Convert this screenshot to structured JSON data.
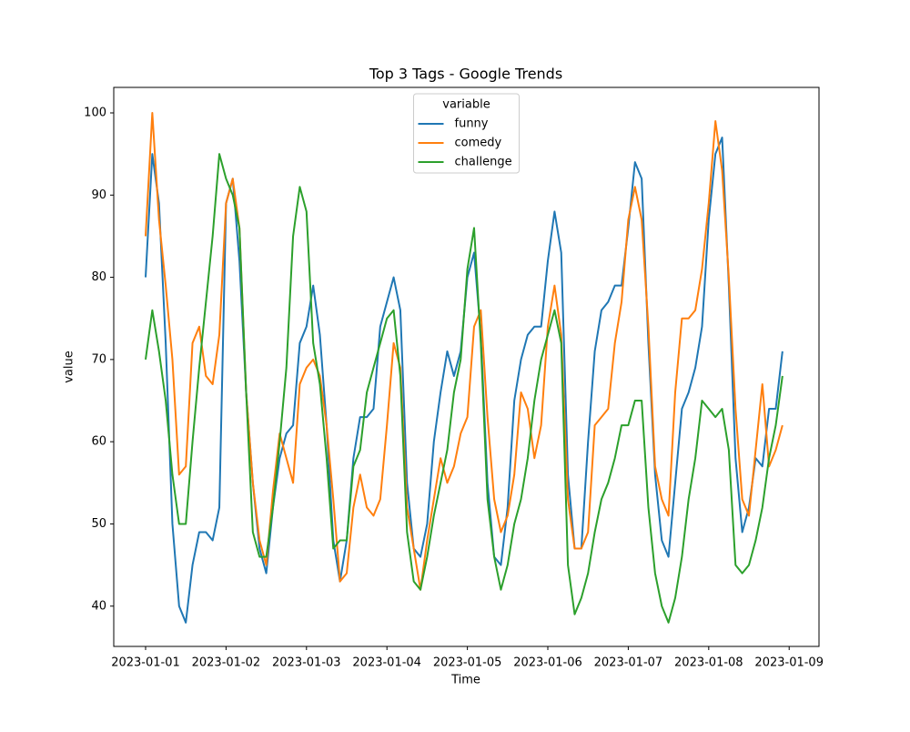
{
  "chart_data": {
    "type": "line",
    "title": "Top 3 Tags - Google Trends",
    "x_label": "Time",
    "y_label": "value",
    "legend_title": "variable",
    "legend_position": "upper center",
    "x": [
      "2023-01-01 00:00",
      "2023-01-01 02:00",
      "2023-01-01 04:00",
      "2023-01-01 06:00",
      "2023-01-01 08:00",
      "2023-01-01 10:00",
      "2023-01-01 12:00",
      "2023-01-01 14:00",
      "2023-01-01 16:00",
      "2023-01-01 18:00",
      "2023-01-01 20:00",
      "2023-01-01 22:00",
      "2023-01-02 00:00",
      "2023-01-02 02:00",
      "2023-01-02 04:00",
      "2023-01-02 06:00",
      "2023-01-02 08:00",
      "2023-01-02 10:00",
      "2023-01-02 12:00",
      "2023-01-02 14:00",
      "2023-01-02 16:00",
      "2023-01-02 18:00",
      "2023-01-02 20:00",
      "2023-01-02 22:00",
      "2023-01-03 00:00",
      "2023-01-03 02:00",
      "2023-01-03 04:00",
      "2023-01-03 06:00",
      "2023-01-03 08:00",
      "2023-01-03 10:00",
      "2023-01-03 12:00",
      "2023-01-03 14:00",
      "2023-01-03 16:00",
      "2023-01-03 18:00",
      "2023-01-03 20:00",
      "2023-01-03 22:00",
      "2023-01-04 00:00",
      "2023-01-04 02:00",
      "2023-01-04 04:00",
      "2023-01-04 06:00",
      "2023-01-04 08:00",
      "2023-01-04 10:00",
      "2023-01-04 12:00",
      "2023-01-04 14:00",
      "2023-01-04 16:00",
      "2023-01-04 18:00",
      "2023-01-04 20:00",
      "2023-01-04 22:00",
      "2023-01-05 00:00",
      "2023-01-05 02:00",
      "2023-01-05 04:00",
      "2023-01-05 06:00",
      "2023-01-05 08:00",
      "2023-01-05 10:00",
      "2023-01-05 12:00",
      "2023-01-05 14:00",
      "2023-01-05 16:00",
      "2023-01-05 18:00",
      "2023-01-05 20:00",
      "2023-01-05 22:00",
      "2023-01-06 00:00",
      "2023-01-06 02:00",
      "2023-01-06 04:00",
      "2023-01-06 06:00",
      "2023-01-06 08:00",
      "2023-01-06 10:00",
      "2023-01-06 12:00",
      "2023-01-06 14:00",
      "2023-01-06 16:00",
      "2023-01-06 18:00",
      "2023-01-06 20:00",
      "2023-01-06 22:00",
      "2023-01-07 00:00",
      "2023-01-07 02:00",
      "2023-01-07 04:00",
      "2023-01-07 06:00",
      "2023-01-07 08:00",
      "2023-01-07 10:00",
      "2023-01-07 12:00",
      "2023-01-07 14:00",
      "2023-01-07 16:00",
      "2023-01-07 18:00",
      "2023-01-07 20:00",
      "2023-01-07 22:00",
      "2023-01-08 00:00",
      "2023-01-08 02:00",
      "2023-01-08 04:00",
      "2023-01-08 06:00",
      "2023-01-08 08:00",
      "2023-01-08 10:00",
      "2023-01-08 12:00",
      "2023-01-08 14:00",
      "2023-01-08 16:00",
      "2023-01-08 18:00",
      "2023-01-08 20:00",
      "2023-01-08 22:00"
    ],
    "series": [
      {
        "name": "funny",
        "color": "#1f77b4",
        "values": [
          80,
          95,
          89,
          72,
          50,
          40,
          38,
          45,
          49,
          49,
          48,
          52,
          89,
          92,
          82,
          66,
          55,
          47,
          44,
          52,
          58,
          61,
          62,
          72,
          74,
          79,
          73,
          62,
          48,
          43,
          48,
          58,
          63,
          63,
          64,
          74,
          77,
          80,
          76,
          55,
          47,
          46,
          50,
          60,
          66,
          71,
          68,
          71,
          80,
          83,
          73,
          55,
          46,
          45,
          52,
          65,
          70,
          73,
          74,
          74,
          82,
          88,
          83,
          56,
          47,
          47,
          60,
          71,
          76,
          77,
          79,
          79,
          86,
          94,
          92,
          72,
          56,
          48,
          46,
          55,
          64,
          66,
          69,
          74,
          87,
          95,
          97,
          79,
          58,
          49,
          52,
          58,
          57,
          64,
          64,
          71
        ]
      },
      {
        "name": "comedy",
        "color": "#ff7f0e",
        "values": [
          85,
          100,
          87,
          79,
          70,
          56,
          57,
          72,
          74,
          68,
          67,
          73,
          89,
          92,
          86,
          66,
          55,
          48,
          45,
          54,
          61,
          58,
          55,
          67,
          69,
          70,
          68,
          62,
          53,
          43,
          44,
          52,
          56,
          52,
          51,
          53,
          62,
          72,
          69,
          52,
          47,
          42,
          48,
          53,
          58,
          55,
          57,
          61,
          63,
          74,
          76,
          63,
          53,
          49,
          51,
          56,
          66,
          64,
          58,
          62,
          74,
          79,
          73,
          53,
          47,
          47,
          49,
          62,
          63,
          64,
          72,
          77,
          87,
          91,
          87,
          74,
          57,
          53,
          51,
          66,
          75,
          75,
          76,
          81,
          89,
          99,
          93,
          80,
          64,
          53,
          51,
          59,
          67,
          57,
          59,
          62
        ]
      },
      {
        "name": "challenge",
        "color": "#2ca02c",
        "values": [
          70,
          76,
          71,
          65,
          56,
          50,
          50,
          60,
          69,
          77,
          85,
          95,
          92,
          90,
          86,
          66,
          49,
          46,
          46,
          52,
          60,
          69,
          85,
          91,
          88,
          72,
          67,
          58,
          47,
          48,
          48,
          57,
          59,
          66,
          69,
          72,
          75,
          76,
          68,
          49,
          43,
          42,
          46,
          51,
          55,
          59,
          66,
          70,
          81,
          86,
          72,
          53,
          46,
          42,
          45,
          50,
          53,
          58,
          65,
          70,
          73,
          76,
          72,
          45,
          39,
          41,
          44,
          49,
          53,
          55,
          58,
          62,
          62,
          65,
          65,
          52,
          44,
          40,
          38,
          41,
          46,
          53,
          58,
          65,
          64,
          63,
          64,
          59,
          45,
          44,
          45,
          48,
          52,
          58,
          62,
          68
        ]
      }
    ],
    "xlim": [
      "2022-12-31 14:30",
      "2023-01-09 08:54"
    ],
    "xticks": [
      "2023-01-01",
      "2023-01-02",
      "2023-01-03",
      "2023-01-04",
      "2023-01-05",
      "2023-01-06",
      "2023-01-07",
      "2023-01-08",
      "2023-01-09"
    ],
    "ylim": [
      35.1,
      103.1
    ],
    "yticks": [
      40,
      50,
      60,
      70,
      80,
      90,
      100
    ],
    "grid": false
  }
}
